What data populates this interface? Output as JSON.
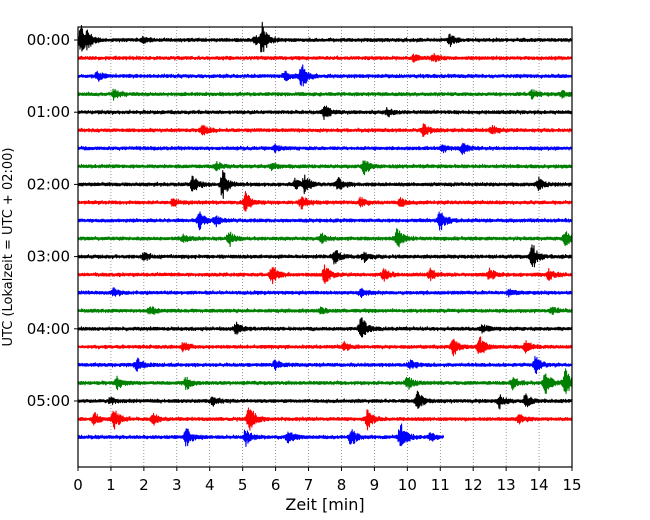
{
  "chart_data": {
    "type": "line",
    "xlabel": "Zeit  [min]",
    "ylabel": "UTC (Lokalzeit = UTC + 02:00)",
    "xlim": [
      0,
      15
    ],
    "x_ticks": [
      "0",
      "1",
      "2",
      "3",
      "4",
      "5",
      "6",
      "7",
      "8",
      "9",
      "10",
      "11",
      "12",
      "13",
      "14",
      "15"
    ],
    "y_tick_labels": [
      "00:00",
      "01:00",
      "02:00",
      "03:00",
      "04:00",
      "05:00"
    ],
    "grid": "vertical dotted at each minute",
    "trace_interval_min": 15,
    "trace_colors": [
      "#000000",
      "#ff0000",
      "#0000ff",
      "#008000"
    ],
    "traces": [
      {
        "start": "00:00",
        "end_min": 15,
        "events": [
          [
            0.1,
            14
          ],
          [
            0.3,
            6
          ],
          [
            5.6,
            16
          ],
          [
            5.4,
            5
          ],
          [
            11.3,
            6
          ],
          [
            2.0,
            3
          ]
        ]
      },
      {
        "start": "00:15",
        "end_min": 15,
        "events": [
          [
            10.8,
            4
          ],
          [
            10.2,
            3
          ]
        ]
      },
      {
        "start": "00:30",
        "end_min": 15,
        "events": [
          [
            6.8,
            12
          ],
          [
            0.6,
            4
          ],
          [
            6.3,
            4
          ]
        ]
      },
      {
        "start": "00:45",
        "end_min": 15,
        "events": [
          [
            1.1,
            5
          ],
          [
            13.8,
            4
          ],
          [
            14.7,
            3
          ]
        ]
      },
      {
        "start": "01:00",
        "end_min": 15,
        "events": [
          [
            7.5,
            7
          ],
          [
            9.4,
            4
          ]
        ]
      },
      {
        "start": "01:15",
        "end_min": 15,
        "events": [
          [
            3.8,
            5
          ],
          [
            10.5,
            6
          ],
          [
            12.6,
            4
          ]
        ]
      },
      {
        "start": "01:30",
        "end_min": 15,
        "events": [
          [
            11.7,
            7
          ],
          [
            11.1,
            4
          ],
          [
            6.0,
            3
          ]
        ]
      },
      {
        "start": "01:45",
        "end_min": 15,
        "events": [
          [
            8.7,
            7
          ],
          [
            4.2,
            4
          ],
          [
            5.9,
            3
          ]
        ]
      },
      {
        "start": "02:00",
        "end_min": 15,
        "events": [
          [
            4.4,
            15
          ],
          [
            3.5,
            8
          ],
          [
            6.9,
            9
          ],
          [
            7.9,
            8
          ],
          [
            14.0,
            6
          ],
          [
            6.6,
            5
          ]
        ]
      },
      {
        "start": "02:15",
        "end_min": 15,
        "events": [
          [
            5.1,
            10
          ],
          [
            6.8,
            7
          ],
          [
            8.6,
            5
          ],
          [
            2.9,
            4
          ],
          [
            9.8,
            4
          ]
        ]
      },
      {
        "start": "02:30",
        "end_min": 15,
        "events": [
          [
            3.7,
            9
          ],
          [
            11.0,
            11
          ],
          [
            4.2,
            4
          ]
        ]
      },
      {
        "start": "02:45",
        "end_min": 15,
        "events": [
          [
            4.6,
            7
          ],
          [
            9.7,
            12
          ],
          [
            14.8,
            7
          ],
          [
            7.4,
            5
          ],
          [
            3.2,
            4
          ]
        ]
      },
      {
        "start": "03:00",
        "end_min": 15,
        "events": [
          [
            13.8,
            13
          ],
          [
            7.8,
            7
          ],
          [
            8.7,
            5
          ],
          [
            2.0,
            4
          ]
        ]
      },
      {
        "start": "03:15",
        "end_min": 15,
        "events": [
          [
            5.9,
            9
          ],
          [
            7.5,
            10
          ],
          [
            9.3,
            7
          ],
          [
            10.7,
            6
          ],
          [
            12.5,
            6
          ],
          [
            14.3,
            5
          ]
        ]
      },
      {
        "start": "03:30",
        "end_min": 15,
        "events": [
          [
            1.1,
            4
          ],
          [
            8.6,
            4
          ],
          [
            13.1,
            3
          ]
        ]
      },
      {
        "start": "03:45",
        "end_min": 15,
        "events": [
          [
            2.2,
            4
          ],
          [
            7.4,
            3
          ],
          [
            14.4,
            3
          ]
        ]
      },
      {
        "start": "04:00",
        "end_min": 15,
        "events": [
          [
            8.6,
            12
          ],
          [
            4.8,
            6
          ],
          [
            12.3,
            4
          ]
        ]
      },
      {
        "start": "04:15",
        "end_min": 15,
        "events": [
          [
            12.2,
            11
          ],
          [
            11.4,
            9
          ],
          [
            3.2,
            5
          ],
          [
            13.6,
            5
          ],
          [
            8.1,
            4
          ]
        ]
      },
      {
        "start": "04:30",
        "end_min": 15,
        "events": [
          [
            1.8,
            7
          ],
          [
            13.9,
            9
          ],
          [
            6.0,
            5
          ],
          [
            10.1,
            4
          ]
        ]
      },
      {
        "start": "04:45",
        "end_min": 15,
        "events": [
          [
            14.8,
            14
          ],
          [
            14.2,
            11
          ],
          [
            1.2,
            6
          ],
          [
            3.3,
            6
          ],
          [
            10.0,
            7
          ],
          [
            13.2,
            6
          ]
        ]
      },
      {
        "start": "05:00",
        "end_min": 15,
        "events": [
          [
            10.3,
            10
          ],
          [
            12.8,
            7
          ],
          [
            13.6,
            6
          ],
          [
            4.1,
            4
          ],
          [
            1.0,
            3
          ]
        ]
      },
      {
        "start": "05:15",
        "end_min": 15,
        "events": [
          [
            1.1,
            12
          ],
          [
            5.2,
            15
          ],
          [
            8.8,
            10
          ],
          [
            0.5,
            6
          ],
          [
            2.3,
            5
          ],
          [
            13.4,
            5
          ]
        ]
      },
      {
        "start": "05:30",
        "end_min": 11.1,
        "events": [
          [
            9.8,
            14
          ],
          [
            3.3,
            9
          ],
          [
            5.1,
            8
          ],
          [
            8.3,
            9
          ],
          [
            6.4,
            6
          ],
          [
            10.7,
            4
          ]
        ]
      }
    ]
  }
}
